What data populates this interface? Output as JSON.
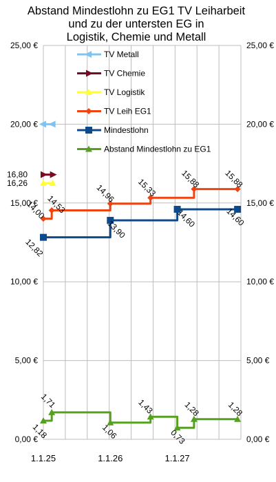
{
  "chart_data": {
    "type": "line",
    "title": [
      "Abstand Mindestlohn zu EG1 TV Leiharbeit",
      "und zu der untersten EG in",
      "Logistik, Chemie und Metall"
    ],
    "ylim": [
      0,
      25
    ],
    "y_ticks": [
      "0,00 €",
      "5,00 €",
      "10,00 €",
      "15,00 €",
      "20,00 €",
      "25,00 €"
    ],
    "x_ticks": [
      "1.1.25",
      "1.1.26",
      "1.1.27"
    ],
    "grid": true,
    "legend_position": "top-center",
    "series": [
      {
        "name": "TV Metall",
        "color": "#7fc4f0",
        "marker": "arrow-left",
        "step": false,
        "x": [
          2025.0,
          2025.14
        ],
        "y": [
          20.0,
          20.0
        ],
        "labels": []
      },
      {
        "name": "TV Chemie",
        "color": "#7a0a22",
        "marker": "arrow-right",
        "step": false,
        "x": [
          2025.0,
          2025.14
        ],
        "y": [
          16.8,
          16.8
        ],
        "labels": [
          "16,80",
          ""
        ]
      },
      {
        "name": "TV Logistik",
        "color": "#ffff33",
        "marker": "triangle",
        "step": false,
        "x": [
          2025.0,
          2025.14
        ],
        "y": [
          16.26,
          16.26
        ],
        "labels": [
          "16,26",
          ""
        ]
      },
      {
        "name": "TV Leih EG1",
        "color": "#ee4411",
        "marker": "diamond",
        "step": true,
        "x": [
          2025.0,
          2025.125,
          2026.0,
          2026.6,
          2027.25,
          2027.9
        ],
        "y": [
          14.0,
          14.53,
          14.96,
          15.33,
          15.88,
          15.88
        ],
        "labels": [
          "14,00",
          "14,53",
          "14,96",
          "15,33",
          "15,88",
          "15,88"
        ]
      },
      {
        "name": "Mindestlohn",
        "color": "#0d4a8c",
        "marker": "square",
        "step": true,
        "x": [
          2025.0,
          2026.0,
          2027.0,
          2027.9
        ],
        "y": [
          12.82,
          13.9,
          14.6,
          14.6
        ],
        "labels": [
          "12,82",
          "13,90",
          "14,60",
          "14,60"
        ]
      },
      {
        "name": "Abstand Mindestlohn zu  EG1",
        "color": "#55a020",
        "marker": "triangle",
        "step": true,
        "x": [
          2025.0,
          2025.125,
          2026.0,
          2026.6,
          2027.0,
          2027.25,
          2027.9
        ],
        "y": [
          1.18,
          1.71,
          1.06,
          1.43,
          0.73,
          1.28,
          1.28
        ],
        "labels": [
          "1,18",
          "1,71",
          "1,06",
          "1,43",
          "0,73",
          "1,28",
          "1,28"
        ]
      }
    ]
  }
}
